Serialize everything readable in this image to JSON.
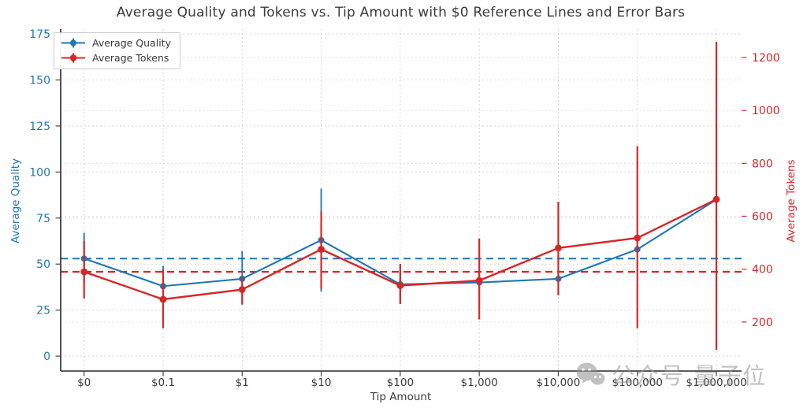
{
  "title": "Average Quality and Tokens vs. Tip Amount with $0 Reference Lines and Error Bars",
  "watermark": {
    "text": "公众号 量子位",
    "icon": "wechat-icon"
  },
  "chart_data": {
    "type": "line",
    "title": "Average Quality and Tokens vs. Tip Amount with $0 Reference Lines and Error Bars",
    "xlabel": "Tip Amount",
    "grid": true,
    "legend_position": "upper left",
    "categories": [
      "$0",
      "$0.1",
      "$1",
      "$10",
      "$100",
      "$1,000",
      "$10,000",
      "$100,000",
      "$1,000,000"
    ],
    "axes": {
      "left": {
        "label": "Average Quality",
        "color": "#1f77b4",
        "ticks": [
          0,
          25,
          50,
          75,
          100,
          125,
          150,
          175
        ],
        "ylim": [
          -8.1,
          177.6
        ]
      },
      "right": {
        "label": "Average Tokens",
        "color": "#d62728",
        "ticks": [
          200,
          400,
          600,
          800,
          1000,
          1200
        ],
        "ylim": [
          15,
          1307
        ]
      }
    },
    "series": [
      {
        "name": "Average Quality",
        "axis": "left",
        "color": "#1f77b4",
        "values": [
          53,
          38,
          42,
          63,
          39,
          40,
          42,
          58,
          85
        ],
        "err_low": [
          40,
          27,
          28,
          35,
          29,
          34,
          38,
          58,
          85
        ],
        "err_high": [
          67,
          49,
          57,
          91,
          50,
          46,
          46,
          58,
          85
        ]
      },
      {
        "name": "Average Tokens",
        "axis": "right",
        "color": "#d62728",
        "values": [
          390,
          286,
          323,
          475,
          338,
          357,
          480,
          518,
          664
        ],
        "err_low": [
          289,
          177,
          266,
          326,
          268,
          210,
          301,
          177,
          95
        ],
        "err_high": [
          507,
          396,
          373,
          619,
          420,
          516,
          655,
          865,
          1259
        ]
      }
    ],
    "reference_lines": [
      {
        "name": "$0 quality reference",
        "axis": "left",
        "value": 53,
        "color": "#1f77b4",
        "style": "dashed"
      },
      {
        "name": "$0 tokens reference",
        "axis": "right",
        "value": 390,
        "color": "#d62728",
        "style": "dashed"
      }
    ]
  }
}
